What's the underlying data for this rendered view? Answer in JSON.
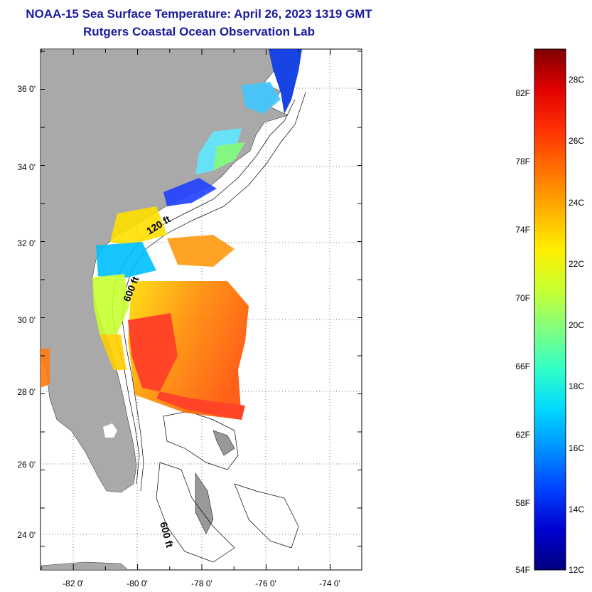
{
  "header": {
    "title": "NOAA-15 Sea Surface Temperature:  April 26, 2023 1319 GMT",
    "subtitle": "Rutgers Coastal Ocean Observation Lab"
  },
  "map": {
    "x_tick_labels": [
      "-82 0'",
      "-80 0'",
      "-78 0'",
      "-76 0'",
      "-74 0'"
    ],
    "y_tick_labels": [
      "36 0'",
      "34 0'",
      "32 0'",
      "30 0'",
      "28 0'",
      "26 0'",
      "24 0'"
    ],
    "contour_labels": [
      "120 ft",
      "600 ft",
      "600 ft"
    ],
    "land_color": "#a9a9a9"
  },
  "colorbar": {
    "fahrenheit_labels": [
      "82F",
      "78F",
      "74F",
      "70F",
      "66F",
      "62F",
      "58F",
      "54F"
    ],
    "celsius_labels": [
      "28C",
      "26C",
      "24C",
      "22C",
      "20C",
      "18C",
      "16C",
      "14C",
      "12C"
    ],
    "colors": [
      "#00007f",
      "#0000d0",
      "#0040ff",
      "#0090ff",
      "#00d8ff",
      "#30ffc8",
      "#80ff80",
      "#c8ff30",
      "#ffef00",
      "#ffb000",
      "#ff7000",
      "#ff3000",
      "#e00000",
      "#7f0000"
    ]
  }
}
